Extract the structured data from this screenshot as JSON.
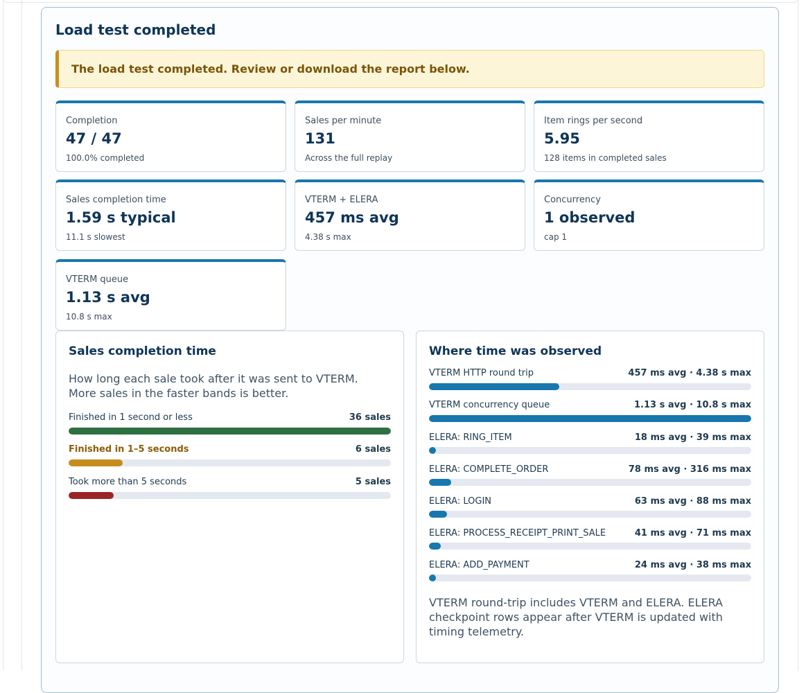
{
  "panel": {
    "title": "Load test completed",
    "notice": "The load test completed. Review or download the report below."
  },
  "cards": [
    {
      "label": "Completion",
      "value": "47 / 47",
      "sub": "100.0% completed"
    },
    {
      "label": "Sales per minute",
      "value": "131",
      "sub": "Across the full replay"
    },
    {
      "label": "Item rings per second",
      "value": "5.95",
      "sub": "128 items in completed sales"
    },
    {
      "label": "Sales completion time",
      "value": "1.59 s typical",
      "sub": "11.1 s slowest"
    },
    {
      "label": "VTERM + ELERA",
      "value": "457 ms avg",
      "sub": "4.38 s max"
    },
    {
      "label": "Concurrency",
      "value": "1 observed",
      "sub": "cap 1"
    },
    {
      "label": "VTERM queue",
      "value": "1.13 s avg",
      "sub": "10.8 s max"
    }
  ],
  "completion_panel": {
    "title": "Sales completion time",
    "description": "How long each sale took after it was sent to VTERM. More sales in the faster bands is better.",
    "bands": [
      {
        "label": "Finished in 1 second or less",
        "count": "36 sales",
        "share": 1.0,
        "color": "#2e7042",
        "label_color": "#1f3a4f"
      },
      {
        "label": "Finished in 1–5 seconds",
        "count": "6 sales",
        "share": 0.167,
        "color": "#c58e1c",
        "label_color": "#8a5e08"
      },
      {
        "label": "Took more than 5 seconds",
        "count": "5 sales",
        "share": 0.139,
        "color": "#9b2424",
        "label_color": "#1f3a4f"
      }
    ]
  },
  "observed_panel": {
    "title": "Where time was observed",
    "rows": [
      {
        "label": "VTERM HTTP round trip",
        "value": "457 ms avg · 4.38 s max",
        "share": 0.404
      },
      {
        "label": "VTERM concurrency queue",
        "value": "1.13 s avg · 10.8 s max",
        "share": 1.0
      },
      {
        "label": "ELERA: RING_ITEM",
        "value": "18 ms avg · 39 ms max",
        "share": 0.016
      },
      {
        "label": "ELERA: COMPLETE_ORDER",
        "value": "78 ms avg · 316 ms max",
        "share": 0.069
      },
      {
        "label": "ELERA: LOGIN",
        "value": "63 ms avg · 88 ms max",
        "share": 0.056
      },
      {
        "label": "ELERA: PROCESS_RECEIPT_PRINT_SALE",
        "value": "41 ms avg · 71 ms max",
        "share": 0.036
      },
      {
        "label": "ELERA: ADD_PAYMENT",
        "value": "24 ms avg · 38 ms max",
        "share": 0.021
      }
    ],
    "bar_color": "#1877ad",
    "footnote": "VTERM round-trip includes VTERM and ELERA. ELERA checkpoint rows appear after VTERM is updated with timing telemetry."
  }
}
